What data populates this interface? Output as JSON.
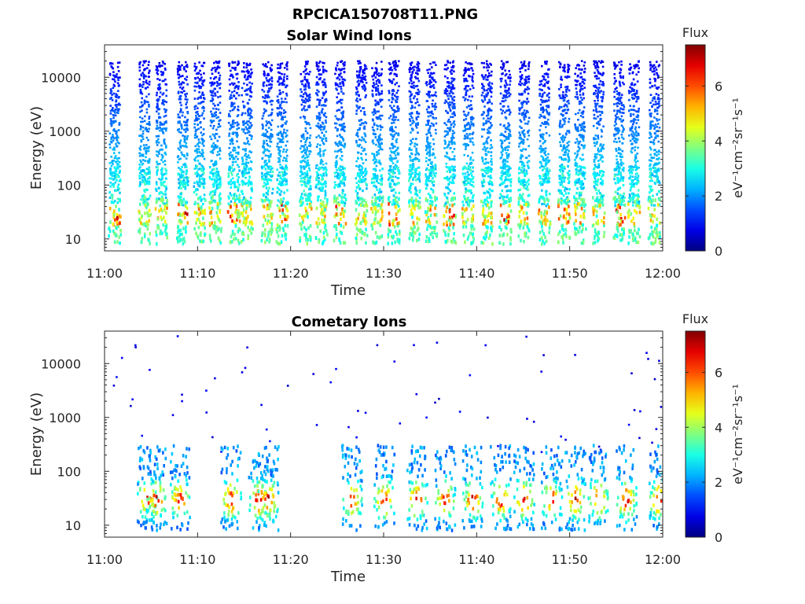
{
  "figure": {
    "title": "RPCICA150708T11.PNG"
  },
  "chart_data": [
    {
      "type": "heatmap",
      "title": "Solar Wind Ions",
      "xlabel": "Time",
      "ylabel": "Energy (eV)",
      "x_ticks": [
        "11:00",
        "11:10",
        "11:20",
        "11:30",
        "11:40",
        "11:50",
        "12:00"
      ],
      "xlim": [
        "11:00",
        "12:00"
      ],
      "y_scale": "log",
      "y_ticks": [
        "10",
        "100",
        "1000",
        "10000"
      ],
      "ylim": [
        6,
        40000
      ],
      "colorbar": {
        "title": "Flux",
        "label": "eV⁻¹cm⁻²sr⁻¹s⁻¹",
        "ticks": [
          "0",
          "2",
          "4",
          "6"
        ],
        "range": [
          0,
          7.5
        ],
        "colormap": "jet"
      },
      "scan_minutes": [
        1.0,
        4.2,
        6.0,
        8.3,
        10.1,
        11.8,
        13.8,
        15.2,
        17.4,
        19.0,
        21.5,
        23.2,
        25.2,
        27.5,
        29.2,
        31.0,
        33.2,
        35.0,
        37.0,
        39.0,
        41.0,
        43.0,
        45.0,
        47.2,
        49.3,
        51.0,
        53.0,
        55.2,
        56.8,
        59.0
      ],
      "high_energy_flux_band": {
        "energy_range_eV": [
          100,
          20000
        ],
        "flux": [
          0.5,
          2.5
        ]
      },
      "low_energy_flux_band": {
        "energy_range_eV": [
          8,
          60
        ],
        "flux": [
          2.0,
          7.0
        ]
      }
    },
    {
      "type": "heatmap",
      "title": "Cometary Ions",
      "xlabel": "Time",
      "ylabel": "Energy (eV)",
      "x_ticks": [
        "11:00",
        "11:10",
        "11:20",
        "11:30",
        "11:40",
        "11:50",
        "12:00"
      ],
      "xlim": [
        "11:00",
        "12:00"
      ],
      "y_scale": "log",
      "y_ticks": [
        "10",
        "100",
        "1000",
        "10000"
      ],
      "ylim": [
        6,
        40000
      ],
      "colorbar": {
        "title": "Flux",
        "label": "eV⁻¹cm⁻²sr⁻¹s⁻¹",
        "ticks": [
          "0",
          "2",
          "4",
          "6"
        ],
        "range": [
          0,
          7.5
        ],
        "colormap": "jet"
      },
      "burst_minutes": [
        4.5,
        5.5,
        8.0,
        13.5,
        16.5,
        17.5,
        26.5,
        30.0,
        33.5,
        36.5,
        39.5,
        42.5,
        45.0,
        48.0,
        50.5,
        53.0,
        56.0,
        59.5
      ],
      "burst_peak_energy_eV": 30,
      "burst_peak_flux": 7.0,
      "sparse_high_energy_counts": {
        "energy_range_eV": [
          200,
          35000
        ],
        "flux": [
          0.5,
          1.0
        ]
      }
    }
  ]
}
